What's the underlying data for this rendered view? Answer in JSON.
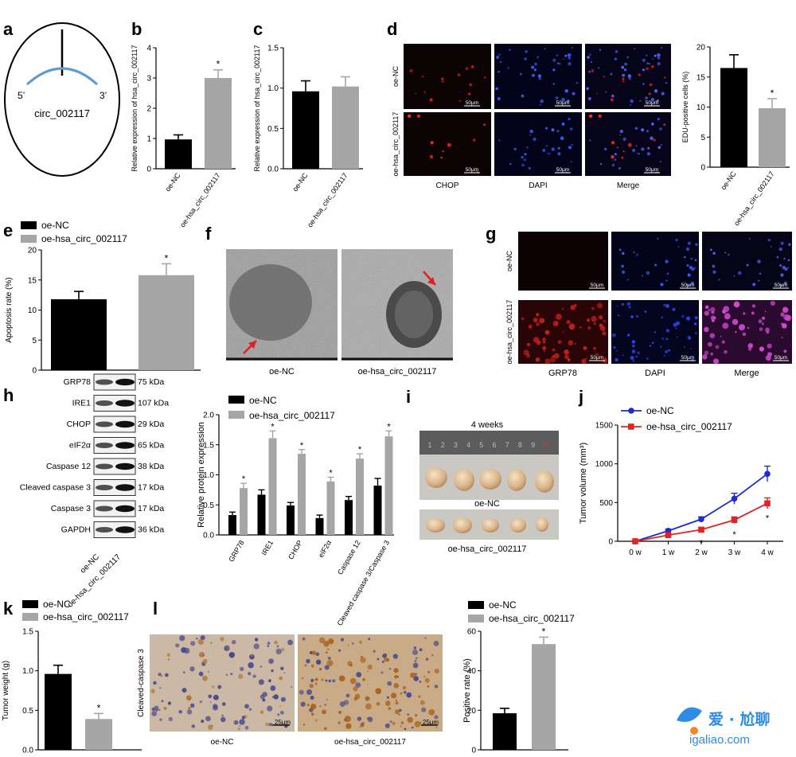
{
  "panels": {
    "a": {
      "letter": "a",
      "circle_label": "circ_002117",
      "end5": "5’",
      "end3": "3’"
    },
    "b": {
      "letter": "b",
      "chart_data": {
        "type": "bar",
        "ylabel": "Relative expression of hsa_circ_002117",
        "categories": [
          "oe-NC",
          "oe-hsa_circ_002117"
        ],
        "values": [
          0.97,
          3.0
        ],
        "errors": [
          0.15,
          0.27
        ],
        "sig": [
          "",
          "*"
        ],
        "ylim": [
          0,
          4
        ],
        "yticks": [
          0,
          1,
          2,
          3,
          4
        ]
      }
    },
    "c": {
      "letter": "c",
      "chart_data": {
        "type": "bar",
        "ylabel": "Relative expression of hsa_circ_002117",
        "categories": [
          "oe-NC",
          "oe-hsa_circ_002117"
        ],
        "values": [
          0.96,
          1.02
        ],
        "errors": [
          0.13,
          0.12
        ],
        "sig": [
          "",
          ""
        ],
        "ylim": [
          0,
          1.5
        ],
        "yticks": [
          0.0,
          0.5,
          1.0,
          1.5
        ]
      }
    },
    "d": {
      "letter": "d",
      "row_labels": [
        "oe-NC",
        "oe-hsa_circ_002117"
      ],
      "col_labels": [
        "CHOP",
        "DAPI",
        "Merge"
      ],
      "scale": "50μm",
      "chart_data": {
        "type": "bar",
        "ylabel": "EDU-positive cells (%)",
        "categories": [
          "oe-NC",
          "oe-hsa_circ_002117"
        ],
        "values": [
          16.5,
          9.8
        ],
        "errors": [
          2.2,
          1.6
        ],
        "sig": [
          "",
          "*"
        ],
        "ylim": [
          0,
          20
        ],
        "yticks": [
          0,
          5,
          10,
          15,
          20
        ]
      }
    },
    "e": {
      "letter": "e",
      "legend": [
        "oe-NC",
        "oe-hsa_circ_002117"
      ],
      "chart_data": {
        "type": "bar",
        "ylabel": "Apoptosis rate (%)",
        "categories": [
          "oe-NC",
          "oe-hsa_circ_002117"
        ],
        "values": [
          11.8,
          15.8
        ],
        "errors": [
          1.3,
          1.9
        ],
        "sig": [
          "",
          "*"
        ],
        "ylim": [
          0,
          20
        ],
        "yticks": [
          0,
          5,
          10,
          15,
          20
        ]
      }
    },
    "f": {
      "letter": "f",
      "labels": [
        "oe-NC",
        "oe-hsa_circ_002117"
      ]
    },
    "g": {
      "letter": "g",
      "row_labels": [
        "oe-NC",
        "oe-hsa_circ_002117"
      ],
      "col_labels": [
        "GRP78",
        "DAPI",
        "Merge"
      ],
      "scale": "50μm"
    },
    "h": {
      "letter": "h",
      "blot_rows": [
        {
          "protein": "GRP78",
          "kda": "75 kDa"
        },
        {
          "protein": "IRE1",
          "kda": "107 kDa"
        },
        {
          "protein": "CHOP",
          "kda": "29 kDa"
        },
        {
          "protein": "eIF2α",
          "kda": "65 kDa"
        },
        {
          "protein": "Caspase 12",
          "kda": "38 kDa"
        },
        {
          "protein": "Cleaved caspase 3",
          "kda": "17 kDa"
        },
        {
          "protein": "Caspase 3",
          "kda": "17 kDa"
        },
        {
          "protein": "GAPDH",
          "kda": "36 kDa"
        }
      ],
      "lane_labels": [
        "oe-NC",
        "oe-hsa_circ_002117"
      ],
      "chart_data": {
        "type": "bar",
        "ylabel": "Relative protein expression",
        "categories": [
          "GRP78",
          "IRE1",
          "CHOP",
          "eIF2α",
          "Caspase 12",
          "Cleaved caspase 3/Caspase 3"
        ],
        "series": [
          {
            "name": "oe-NC",
            "values": [
              0.33,
              0.67,
              0.49,
              0.28,
              0.58,
              0.82
            ],
            "errors": [
              0.05,
              0.08,
              0.05,
              0.05,
              0.06,
              0.12
            ]
          },
          {
            "name": "oe-hsa_circ_002117",
            "values": [
              0.78,
              1.61,
              1.35,
              0.89,
              1.27,
              1.64
            ],
            "errors": [
              0.08,
              0.12,
              0.07,
              0.07,
              0.08,
              0.09
            ]
          }
        ],
        "sig": [
          "*",
          "*",
          "*",
          "*",
          "*",
          "*"
        ],
        "ylim": [
          0,
          2.0
        ],
        "yticks": [
          0.0,
          0.5,
          1.0,
          1.5,
          2.0
        ],
        "legend_position": "top"
      }
    },
    "i": {
      "letter": "i",
      "title": "4 weeks",
      "labels": [
        "oe-NC",
        "oe-hsa_circ_002117"
      ],
      "ruler": [
        "1",
        "2",
        "3",
        "4",
        "5",
        "6",
        "7",
        "8",
        "9",
        "10"
      ]
    },
    "j": {
      "letter": "j",
      "chart_data": {
        "type": "line",
        "ylabel": "Tumor volume (mm³)",
        "categories": [
          "0 w",
          "1 w",
          "2 w",
          "3 w",
          "4 w"
        ],
        "series": [
          {
            "name": "oe-NC",
            "color": "#1f2bd1",
            "values": [
              0,
              135,
              285,
              550,
              870
            ],
            "errors": [
              0,
              20,
              30,
              70,
              100
            ]
          },
          {
            "name": "oe-hsa_circ_002117",
            "color": "#e02424",
            "values": [
              0,
              80,
              150,
              275,
              490
            ],
            "errors": [
              0,
              15,
              25,
              40,
              70
            ]
          }
        ],
        "sig": [
          "",
          "",
          "*",
          "*",
          "*"
        ],
        "ylim": [
          0,
          1500
        ],
        "yticks": [
          0,
          500,
          1000,
          1500
        ],
        "legend_position": "top-left"
      }
    },
    "k": {
      "letter": "k",
      "legend": [
        "oe-NC",
        "oe-hsa_circ_002117"
      ],
      "chart_data": {
        "type": "bar",
        "ylabel": "Tumor weight (g)",
        "categories": [
          "oe-NC",
          "oe-hsa_circ_002117"
        ],
        "values": [
          0.96,
          0.39
        ],
        "errors": [
          0.11,
          0.07
        ],
        "sig": [
          "",
          "*"
        ],
        "ylim": [
          0,
          1.5
        ],
        "yticks": [
          0.0,
          0.5,
          1.0,
          1.5
        ]
      }
    },
    "l": {
      "letter": "l",
      "row_label": "Cleaved-caspase 3",
      "labels": [
        "oe-NC",
        "oe-hsa_circ_002117"
      ],
      "scale": "25μm",
      "legend": [
        "oe-NC",
        "oe-hsa_circ_002117"
      ],
      "chart_data": {
        "type": "bar",
        "ylabel": "Positive rate (%)",
        "categories": [
          "oe-NC",
          "oe-hsa_circ_002117"
        ],
        "values": [
          18.5,
          53.5
        ],
        "errors": [
          2.5,
          3.5
        ],
        "sig": [
          "",
          "*"
        ],
        "ylim": [
          0,
          60
        ],
        "yticks": [
          0,
          20,
          40,
          60
        ]
      }
    }
  },
  "watermark": {
    "line1": "爱 · 尬聊",
    "line2": "igaliao.com"
  },
  "colors": {
    "nc": "#000000",
    "oe": "#a6a6a6",
    "line_nc": "#1f2bd1",
    "line_oe": "#e02424",
    "arc": "#5b9bd5"
  }
}
